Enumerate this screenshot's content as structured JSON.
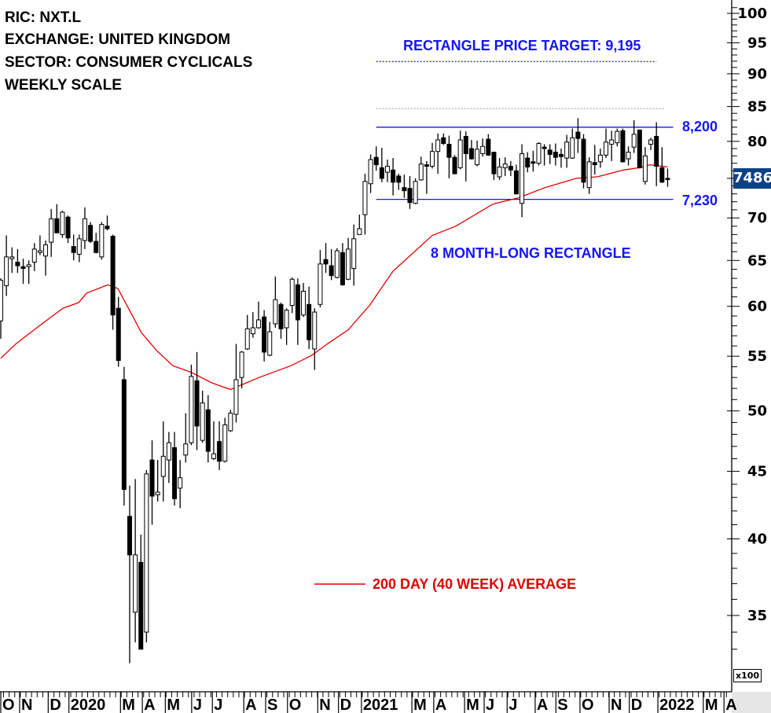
{
  "header": {
    "ric": "RIC: NXT.L",
    "exchange": "EXCHANGE: UNITED KINGDOM",
    "sector": "SECTOR: CONSUMER CYCLICALS",
    "scale": "WEEKLY SCALE"
  },
  "annotations": {
    "target": "RECTANGLE PRICE TARGET: 9,195",
    "upper": "8,200",
    "lower": "7,230",
    "pattern": "8 MONTH-LONG RECTANGLE",
    "legend": "200 DAY (40 WEEK) AVERAGE"
  },
  "last_price_label": "7486",
  "unit_label": "x100",
  "colors": {
    "annotation": "#1414ff",
    "ma": "#e00000",
    "last_box": "#0b4287",
    "candle": "#000000"
  },
  "chart_data": {
    "type": "candlestick",
    "title": "NXT.L weekly",
    "yscale": "log",
    "ylim": [
      32,
      101
    ],
    "yticks": [
      35,
      40,
      45,
      50,
      55,
      60,
      65,
      70,
      75,
      80,
      85,
      90,
      95,
      100
    ],
    "yticks_labeled": [
      35,
      40,
      45,
      50,
      55,
      60,
      65,
      70,
      80,
      85,
      90,
      95,
      100
    ],
    "xticks": [
      {
        "label": "O",
        "week": -0.7
      },
      {
        "label": "N",
        "week": 2.8
      },
      {
        "label": "D",
        "week": 7.9
      },
      {
        "label": "2020",
        "week": 11.6
      },
      {
        "label": "M",
        "week": 20.8
      },
      {
        "label": "A",
        "week": 24.7
      },
      {
        "label": "M",
        "week": 28.8
      },
      {
        "label": "J",
        "week": 33.5
      },
      {
        "label": "J",
        "week": 37.2
      },
      {
        "label": "A",
        "week": 42.8
      },
      {
        "label": "S",
        "week": 46.7
      },
      {
        "label": "O",
        "week": 50.6
      },
      {
        "label": "N",
        "week": 56.0
      },
      {
        "label": "D",
        "week": 59.7
      },
      {
        "label": "2021",
        "week": 63.8
      },
      {
        "label": "M",
        "week": 72.8
      },
      {
        "label": "A",
        "week": 76.7
      },
      {
        "label": "M",
        "week": 82.2
      },
      {
        "label": "J",
        "week": 85.7
      },
      {
        "label": "J",
        "week": 89.8
      },
      {
        "label": "A",
        "week": 94.8
      },
      {
        "label": "S",
        "week": 98.5
      },
      {
        "label": "O",
        "week": 102.8
      },
      {
        "label": "N",
        "week": 108.0
      },
      {
        "label": "D",
        "week": 111.6
      },
      {
        "label": "2022",
        "week": 116.7
      },
      {
        "label": "M",
        "week": 124.8
      },
      {
        "label": "A",
        "week": 128.5
      }
    ],
    "ohlc": [
      [
        58.5,
        63.0,
        56.7,
        62.8
      ],
      [
        62.2,
        67.9,
        61.1,
        65.4
      ],
      [
        65.2,
        66.5,
        63.6,
        65.4
      ],
      [
        64.8,
        66.3,
        63.6,
        64.4
      ],
      [
        64.3,
        65.2,
        62.4,
        64.1
      ],
      [
        64.3,
        65.0,
        62.4,
        64.5
      ],
      [
        64.8,
        67.0,
        63.8,
        66.3
      ],
      [
        65.9,
        67.9,
        65.6,
        66.1
      ],
      [
        65.5,
        67.3,
        63.3,
        66.8
      ],
      [
        67.1,
        71.1,
        65.4,
        69.9
      ],
      [
        69.9,
        71.7,
        68.2,
        68.2
      ],
      [
        68.0,
        70.9,
        67.6,
        70.7
      ],
      [
        70.1,
        70.3,
        67.0,
        67.6
      ],
      [
        66.6,
        68.0,
        65.0,
        65.9
      ],
      [
        65.7,
        68.0,
        64.8,
        67.5
      ],
      [
        67.3,
        71.3,
        66.3,
        69.9
      ],
      [
        69.1,
        69.5,
        67.0,
        67.2
      ],
      [
        67.2,
        68.2,
        65.8,
        65.9
      ],
      [
        65.4,
        69.5,
        65.1,
        69.2
      ],
      [
        69.0,
        70.3,
        68.5,
        68.7
      ],
      [
        67.8,
        68.0,
        57.6,
        59.1
      ],
      [
        59.8,
        61.0,
        54.0,
        54.6
      ],
      [
        52.8,
        54.0,
        42.4,
        43.6
      ],
      [
        41.6,
        43.9,
        32.2,
        38.9
      ],
      [
        35.2,
        44.4,
        33.4,
        38.9
      ],
      [
        38.4,
        40.3,
        33.0,
        33.0
      ],
      [
        34.0,
        45.1,
        33.4,
        44.8
      ],
      [
        45.9,
        47.5,
        41.0,
        43.1
      ],
      [
        43.2,
        45.9,
        42.7,
        43.4
      ],
      [
        44.6,
        49.1,
        42.7,
        46.2
      ],
      [
        45.9,
        48.2,
        44.1,
        47.3
      ],
      [
        46.9,
        48.2,
        42.4,
        42.9
      ],
      [
        43.7,
        45.9,
        42.2,
        44.5
      ],
      [
        46.3,
        49.8,
        45.7,
        47.2
      ],
      [
        47.3,
        54.2,
        47.1,
        53.1
      ],
      [
        52.7,
        55.4,
        46.7,
        48.7
      ],
      [
        47.5,
        51.8,
        47.3,
        50.7
      ],
      [
        50.1,
        51.4,
        45.7,
        46.6
      ],
      [
        46.0,
        49.1,
        45.9,
        46.4
      ],
      [
        47.4,
        49.1,
        45.1,
        45.8
      ],
      [
        45.8,
        49.4,
        45.7,
        48.8
      ],
      [
        48.3,
        50.1,
        48.2,
        49.8
      ],
      [
        49.7,
        56.2,
        49.0,
        52.8
      ],
      [
        53.0,
        55.5,
        52.0,
        55.4
      ],
      [
        55.7,
        59.1,
        55.6,
        57.7
      ],
      [
        57.2,
        59.4,
        56.8,
        57.8
      ],
      [
        57.8,
        60.5,
        57.7,
        58.6
      ],
      [
        58.9,
        59.6,
        54.5,
        55.4
      ],
      [
        55.1,
        58.4,
        55.0,
        57.4
      ],
      [
        58.2,
        63.2,
        57.8,
        60.7
      ],
      [
        60.2,
        60.4,
        56.7,
        57.7
      ],
      [
        57.8,
        59.8,
        56.1,
        59.6
      ],
      [
        60.1,
        63.1,
        59.3,
        62.9
      ],
      [
        62.3,
        63.0,
        56.1,
        58.6
      ],
      [
        59.1,
        62.5,
        58.9,
        61.6
      ],
      [
        60.2,
        62.1,
        55.7,
        56.6
      ],
      [
        55.7,
        59.8,
        53.7,
        59.4
      ],
      [
        60.2,
        66.2,
        59.9,
        64.6
      ],
      [
        65.1,
        67.0,
        63.6,
        64.6
      ],
      [
        64.4,
        66.3,
        62.8,
        63.3
      ],
      [
        63.1,
        66.4,
        63.0,
        66.1
      ],
      [
        65.9,
        67.0,
        62.2,
        62.3
      ],
      [
        62.9,
        67.6,
        62.8,
        66.3
      ],
      [
        64.1,
        69.2,
        62.2,
        67.5
      ],
      [
        68.0,
        70.4,
        68.0,
        68.7
      ],
      [
        70.4,
        75.6,
        68.0,
        74.6
      ],
      [
        74.3,
        78.2,
        73.1,
        77.5
      ],
      [
        77.8,
        79.3,
        76.0,
        76.8
      ],
      [
        76.4,
        79.1,
        74.5,
        75.0
      ],
      [
        75.8,
        77.5,
        74.5,
        76.6
      ],
      [
        76.1,
        77.7,
        72.8,
        74.5
      ],
      [
        75.3,
        75.6,
        73.5,
        74.5
      ],
      [
        73.8,
        75.5,
        72.5,
        73.4
      ],
      [
        73.7,
        75.3,
        71.1,
        71.9
      ],
      [
        71.8,
        75.0,
        71.7,
        74.6
      ],
      [
        74.8,
        77.9,
        74.7,
        76.9
      ],
      [
        76.8,
        77.3,
        73.0,
        76.6
      ],
      [
        76.6,
        79.8,
        76.3,
        78.6
      ],
      [
        78.6,
        81.1,
        75.6,
        80.2
      ],
      [
        80.5,
        81.1,
        79.5,
        79.7
      ],
      [
        79.6,
        80.8,
        75.0,
        77.8
      ],
      [
        77.8,
        78.1,
        75.6,
        75.6
      ],
      [
        76.4,
        81.5,
        76.2,
        80.2
      ],
      [
        80.7,
        81.4,
        74.6,
        78.3
      ],
      [
        79.0,
        80.2,
        77.5,
        77.6
      ],
      [
        76.8,
        80.1,
        76.6,
        78.9
      ],
      [
        78.3,
        80.4,
        77.9,
        79.3
      ],
      [
        80.3,
        81.0,
        78.0,
        78.1
      ],
      [
        78.5,
        78.5,
        74.8,
        75.6
      ],
      [
        75.2,
        77.7,
        74.8,
        76.5
      ],
      [
        76.4,
        77.8,
        75.3,
        76.9
      ],
      [
        76.6,
        77.3,
        75.3,
        76.1
      ],
      [
        76.0,
        76.8,
        72.9,
        73.0
      ],
      [
        71.8,
        79.6,
        70.1,
        78.3
      ],
      [
        77.7,
        78.5,
        75.8,
        76.5
      ],
      [
        77.2,
        78.7,
        75.9,
        77.0
      ],
      [
        77.0,
        79.9,
        76.7,
        79.7
      ],
      [
        79.2,
        79.6,
        76.7,
        79.0
      ],
      [
        78.8,
        79.6,
        76.9,
        78.2
      ],
      [
        78.5,
        79.7,
        76.7,
        77.8
      ],
      [
        78.2,
        79.0,
        76.4,
        77.9
      ],
      [
        77.7,
        80.9,
        76.4,
        79.9
      ],
      [
        77.7,
        81.8,
        77.6,
        80.5
      ],
      [
        81.3,
        83.3,
        78.4,
        80.4
      ],
      [
        80.3,
        81.0,
        73.7,
        74.5
      ],
      [
        73.8,
        77.8,
        73.0,
        77.2
      ],
      [
        77.1,
        79.5,
        75.5,
        76.8
      ],
      [
        77.2,
        79.0,
        76.4,
        78.1
      ],
      [
        78.1,
        81.8,
        77.7,
        79.9
      ],
      [
        79.6,
        81.5,
        77.3,
        80.2
      ],
      [
        79.8,
        81.8,
        79.3,
        81.4
      ],
      [
        81.5,
        81.8,
        77.1,
        77.2
      ],
      [
        77.6,
        79.3,
        76.7,
        78.5
      ],
      [
        79.2,
        83.0,
        78.4,
        81.0
      ],
      [
        81.6,
        81.6,
        76.3,
        76.4
      ],
      [
        74.6,
        79.2,
        74.2,
        78.0
      ],
      [
        79.6,
        80.5,
        78.8,
        80.2
      ],
      [
        80.7,
        82.7,
        74.0,
        76.6
      ],
      [
        76.4,
        79.2,
        74.4,
        74.5
      ],
      [
        75.0,
        76.3,
        73.9,
        74.86
      ]
    ],
    "ma40": {
      "name": "200 DAY (40 WEEK) AVERAGE",
      "points": [
        [
          0,
          54.8
        ],
        [
          2.7,
          56.2
        ],
        [
          6.9,
          58.0
        ],
        [
          11.1,
          59.8
        ],
        [
          13.9,
          60.4
        ],
        [
          15.3,
          61.4
        ],
        [
          19.1,
          62.3
        ],
        [
          20.9,
          61.9
        ],
        [
          25.1,
          57.3
        ],
        [
          27.9,
          55.5
        ],
        [
          30.7,
          54.1
        ],
        [
          33.9,
          53.5
        ],
        [
          37.7,
          52.5
        ],
        [
          41.0,
          51.9
        ],
        [
          46.1,
          53.0
        ],
        [
          51.8,
          54.1
        ],
        [
          55.5,
          55.1
        ],
        [
          58.3,
          56.2
        ],
        [
          62.0,
          57.6
        ],
        [
          65.8,
          60.1
        ],
        [
          70.0,
          63.8
        ],
        [
          77.0,
          67.9
        ],
        [
          81.2,
          69.0
        ],
        [
          87.8,
          71.7
        ],
        [
          92.4,
          72.5
        ],
        [
          97.1,
          73.8
        ],
        [
          102.7,
          75.0
        ],
        [
          106.5,
          75.2
        ],
        [
          111.1,
          76.1
        ],
        [
          113.9,
          76.4
        ],
        [
          115.8,
          76.8
        ],
        [
          119.0,
          76.5
        ]
      ]
    },
    "levels": [
      {
        "name": "rectangle-top",
        "value": 82.0,
        "style": "solid",
        "from_week": 67,
        "to_week": 120
      },
      {
        "name": "rectangle-bottom",
        "value": 72.3,
        "style": "solid",
        "from_week": 67,
        "to_week": 120
      },
      {
        "name": "price-target",
        "value": 91.95,
        "style": "dotted",
        "from_week": 67,
        "to_week": 117
      },
      {
        "name": "gray-guide",
        "value": 84.7,
        "style": "dotted",
        "from_week": 67,
        "to_week": 118.5
      }
    ],
    "last_price": 74.86
  }
}
